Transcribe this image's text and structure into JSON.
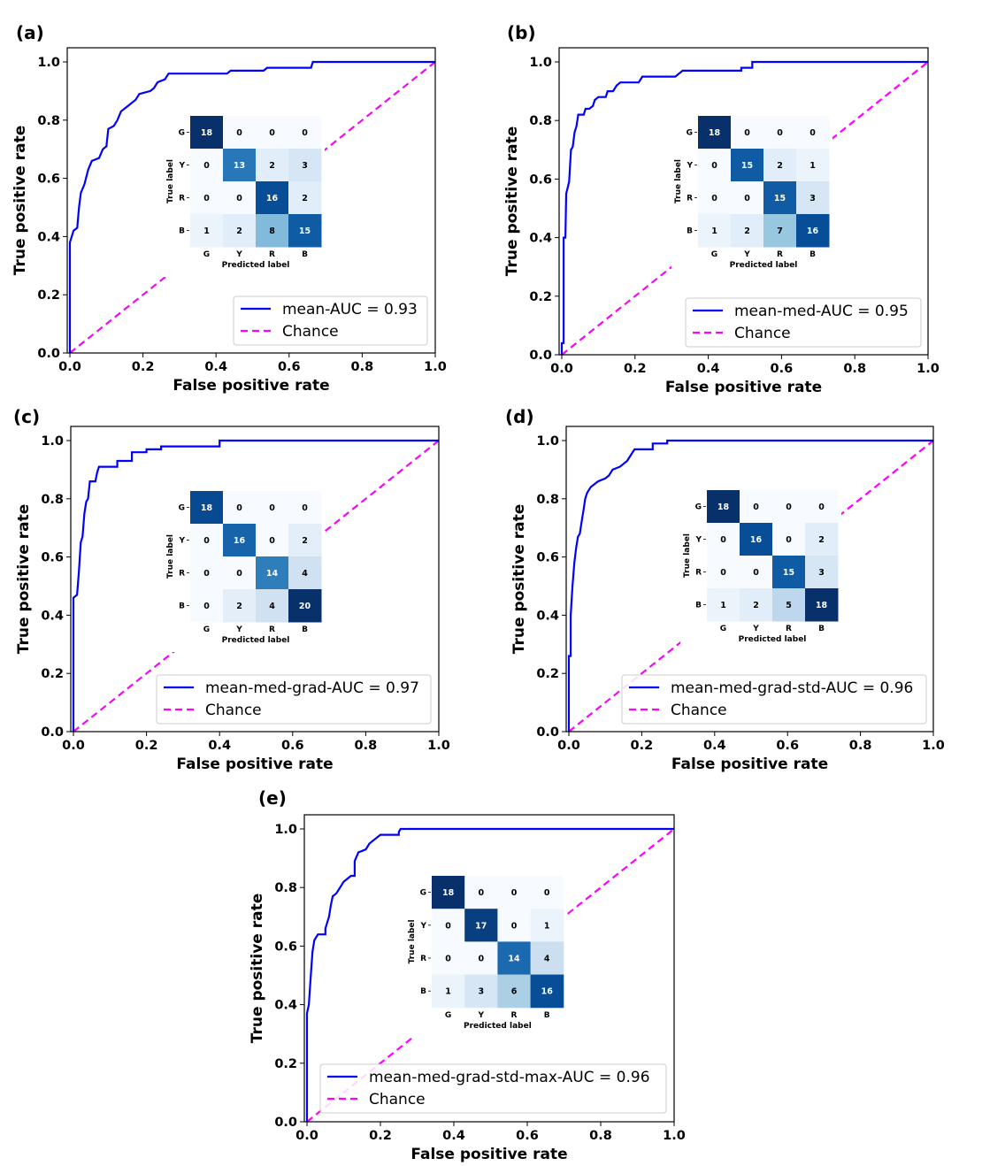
{
  "chart_data": [
    {
      "panel_label": "(a)",
      "type": "line",
      "xlabel": "False positive rate",
      "ylabel": "True positive rate",
      "xlim": [
        0,
        1
      ],
      "ylim": [
        0,
        1
      ],
      "xticks": [
        "0.0",
        "0.2",
        "0.4",
        "0.6",
        "0.8",
        "1.0"
      ],
      "yticks": [
        "0.0",
        "0.2",
        "0.4",
        "0.6",
        "0.8",
        "1.0"
      ],
      "legend": "lower-right",
      "series": [
        {
          "name": "mean-AUC = 0.93",
          "color": "#0000ff",
          "style": "solid",
          "x": [
            0,
            0,
            0.005,
            0.01,
            0.02,
            0.025,
            0.03,
            0.04,
            0.05,
            0.06,
            0.08,
            0.09,
            0.1,
            0.105,
            0.12,
            0.13,
            0.14,
            0.16,
            0.18,
            0.19,
            0.22,
            0.23,
            0.24,
            0.26,
            0.27,
            0.43,
            0.44,
            0.53,
            0.54,
            0.66,
            0.665,
            1
          ],
          "y": [
            0,
            0.38,
            0.4,
            0.42,
            0.43,
            0.5,
            0.55,
            0.58,
            0.63,
            0.66,
            0.67,
            0.7,
            0.71,
            0.77,
            0.78,
            0.8,
            0.83,
            0.85,
            0.87,
            0.89,
            0.9,
            0.91,
            0.93,
            0.94,
            0.96,
            0.96,
            0.97,
            0.97,
            0.98,
            0.98,
            1,
            1
          ]
        },
        {
          "name": "Chance",
          "color": "#ff00ff",
          "style": "dashed",
          "x": [
            0,
            1
          ],
          "y": [
            0,
            1
          ]
        }
      ],
      "inset": {
        "type": "heatmap",
        "xlabel": "Predicted label",
        "ylabel": "True label",
        "categories": [
          "G",
          "Y",
          "R",
          "B"
        ],
        "matrix": [
          [
            18,
            0,
            0,
            0
          ],
          [
            0,
            13,
            2,
            3
          ],
          [
            0,
            0,
            16,
            2
          ],
          [
            1,
            2,
            8,
            15
          ]
        ]
      }
    },
    {
      "panel_label": "(b)",
      "type": "line",
      "xlabel": "False positive rate",
      "ylabel": "True positive rate",
      "xlim": [
        0,
        1
      ],
      "ylim": [
        0,
        1
      ],
      "xticks": [
        "0.0",
        "0.2",
        "0.4",
        "0.6",
        "0.8",
        "1.0"
      ],
      "yticks": [
        "0.0",
        "0.2",
        "0.4",
        "0.6",
        "0.8",
        "1.0"
      ],
      "legend": "lower-right",
      "series": [
        {
          "name": "mean-med-AUC = 0.95",
          "color": "#0000ff",
          "style": "solid",
          "x": [
            0,
            0,
            0.005,
            0.005,
            0.01,
            0.012,
            0.02,
            0.025,
            0.03,
            0.035,
            0.04,
            0.045,
            0.06,
            0.065,
            0.075,
            0.085,
            0.09,
            0.1,
            0.12,
            0.125,
            0.14,
            0.145,
            0.15,
            0.16,
            0.21,
            0.22,
            0.31,
            0.32,
            0.33,
            0.49,
            0.49,
            0.52,
            0.52,
            1
          ],
          "y": [
            0,
            0.04,
            0.04,
            0.4,
            0.4,
            0.55,
            0.59,
            0.7,
            0.71,
            0.76,
            0.78,
            0.82,
            0.82,
            0.84,
            0.84,
            0.85,
            0.87,
            0.88,
            0.88,
            0.9,
            0.9,
            0.91,
            0.92,
            0.93,
            0.93,
            0.95,
            0.95,
            0.96,
            0.97,
            0.97,
            0.98,
            0.98,
            1,
            1
          ]
        },
        {
          "name": "Chance",
          "color": "#ff00ff",
          "style": "dashed",
          "x": [
            0,
            1
          ],
          "y": [
            0,
            1
          ]
        }
      ],
      "inset": {
        "type": "heatmap",
        "xlabel": "Predicted label",
        "ylabel": "True label",
        "categories": [
          "G",
          "Y",
          "R",
          "B"
        ],
        "matrix": [
          [
            18,
            0,
            0,
            0
          ],
          [
            0,
            15,
            2,
            1
          ],
          [
            0,
            0,
            15,
            3
          ],
          [
            1,
            2,
            7,
            16
          ]
        ]
      }
    },
    {
      "panel_label": "(c)",
      "type": "line",
      "xlabel": "False positive rate",
      "ylabel": "True positive rate",
      "xlim": [
        0,
        1
      ],
      "ylim": [
        0,
        1
      ],
      "xticks": [
        "0.0",
        "0.2",
        "0.4",
        "0.6",
        "0.8",
        "1.0"
      ],
      "yticks": [
        "0.0",
        "0.2",
        "0.4",
        "0.6",
        "0.8",
        "1.0"
      ],
      "legend": "lower-right",
      "series": [
        {
          "name": "mean-med-grad-AUC = 0.97",
          "color": "#0000ff",
          "style": "solid",
          "x": [
            0,
            0,
            0.01,
            0.015,
            0.02,
            0.025,
            0.03,
            0.035,
            0.04,
            0.045,
            0.06,
            0.065,
            0.07,
            0.12,
            0.12,
            0.16,
            0.16,
            0.2,
            0.2,
            0.24,
            0.24,
            0.4,
            0.4,
            1
          ],
          "y": [
            0,
            0.46,
            0.47,
            0.55,
            0.65,
            0.67,
            0.75,
            0.79,
            0.8,
            0.86,
            0.86,
            0.89,
            0.91,
            0.91,
            0.93,
            0.93,
            0.96,
            0.96,
            0.97,
            0.97,
            0.98,
            0.98,
            1,
            1
          ]
        },
        {
          "name": "Chance",
          "color": "#ff00ff",
          "style": "dashed",
          "x": [
            0,
            1
          ],
          "y": [
            0,
            1
          ]
        }
      ],
      "inset": {
        "type": "heatmap",
        "xlabel": "Predicted label",
        "ylabel": "True label",
        "categories": [
          "G",
          "Y",
          "R",
          "B"
        ],
        "matrix": [
          [
            18,
            0,
            0,
            0
          ],
          [
            0,
            16,
            0,
            2
          ],
          [
            0,
            0,
            14,
            4
          ],
          [
            0,
            2,
            4,
            20
          ]
        ]
      }
    },
    {
      "panel_label": "(d)",
      "type": "line",
      "xlabel": "False positive rate",
      "ylabel": "True positive rate",
      "xlim": [
        0,
        1
      ],
      "ylim": [
        0,
        1
      ],
      "xticks": [
        "0.0",
        "0.2",
        "0.4",
        "0.6",
        "0.8",
        "1.0"
      ],
      "yticks": [
        "0.0",
        "0.2",
        "0.4",
        "0.6",
        "0.8",
        "1.0"
      ],
      "legend": "lower-right",
      "series": [
        {
          "name": "mean-med-grad-std-AUC = 0.96",
          "color": "#0000ff",
          "style": "solid",
          "x": [
            0,
            0,
            0.005,
            0.005,
            0.01,
            0.015,
            0.02,
            0.025,
            0.03,
            0.035,
            0.04,
            0.045,
            0.05,
            0.06,
            0.07,
            0.08,
            0.1,
            0.11,
            0.12,
            0.14,
            0.16,
            0.17,
            0.18,
            0.23,
            0.23,
            0.27,
            0.27,
            1
          ],
          "y": [
            0,
            0.26,
            0.26,
            0.4,
            0.5,
            0.58,
            0.63,
            0.67,
            0.68,
            0.72,
            0.76,
            0.8,
            0.82,
            0.84,
            0.85,
            0.86,
            0.87,
            0.88,
            0.9,
            0.91,
            0.93,
            0.95,
            0.97,
            0.97,
            0.99,
            0.99,
            1,
            1
          ]
        },
        {
          "name": "Chance",
          "color": "#ff00ff",
          "style": "dashed",
          "x": [
            0,
            1
          ],
          "y": [
            0,
            1
          ]
        }
      ],
      "inset": {
        "type": "heatmap",
        "xlabel": "Predicted label",
        "ylabel": "True label",
        "categories": [
          "G",
          "Y",
          "R",
          "B"
        ],
        "matrix": [
          [
            18,
            0,
            0,
            0
          ],
          [
            0,
            16,
            0,
            2
          ],
          [
            0,
            0,
            15,
            3
          ],
          [
            1,
            2,
            5,
            18
          ]
        ]
      }
    },
    {
      "panel_label": "(e)",
      "type": "line",
      "xlabel": "False positive rate",
      "ylabel": "True positive rate",
      "xlim": [
        0,
        1
      ],
      "ylim": [
        0,
        1
      ],
      "xticks": [
        "0.0",
        "0.2",
        "0.4",
        "0.6",
        "0.8",
        "1.0"
      ],
      "yticks": [
        "0.0",
        "0.2",
        "0.4",
        "0.6",
        "0.8",
        "1.0"
      ],
      "legend": "lower-right",
      "series": [
        {
          "name": "mean-med-grad-std-max-AUC = 0.96",
          "color": "#0000ff",
          "style": "solid",
          "x": [
            0,
            0,
            0.005,
            0.01,
            0.015,
            0.02,
            0.03,
            0.05,
            0.05,
            0.06,
            0.065,
            0.07,
            0.08,
            0.09,
            0.1,
            0.12,
            0.13,
            0.13,
            0.14,
            0.16,
            0.17,
            0.18,
            0.2,
            0.25,
            0.25,
            0.255,
            1
          ],
          "y": [
            0,
            0.37,
            0.4,
            0.49,
            0.58,
            0.62,
            0.64,
            0.64,
            0.66,
            0.7,
            0.74,
            0.77,
            0.78,
            0.8,
            0.82,
            0.84,
            0.84,
            0.89,
            0.92,
            0.93,
            0.95,
            0.96,
            0.98,
            0.98,
            0.99,
            1,
            1
          ]
        },
        {
          "name": "Chance",
          "color": "#ff00ff",
          "style": "dashed",
          "x": [
            0,
            1
          ],
          "y": [
            0,
            1
          ]
        }
      ],
      "inset": {
        "type": "heatmap",
        "xlabel": "Predicted label",
        "ylabel": "True label",
        "categories": [
          "G",
          "Y",
          "R",
          "B"
        ],
        "matrix": [
          [
            18,
            0,
            0,
            0
          ],
          [
            0,
            17,
            0,
            1
          ],
          [
            0,
            0,
            14,
            4
          ],
          [
            1,
            3,
            6,
            16
          ]
        ]
      }
    }
  ]
}
